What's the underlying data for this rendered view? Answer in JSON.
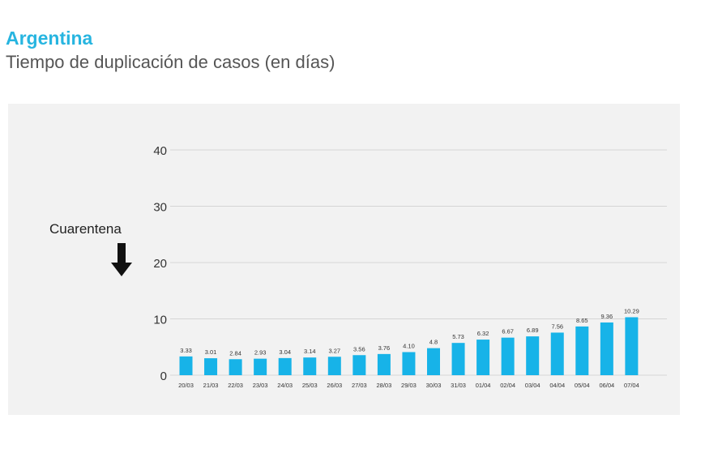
{
  "header": {
    "title": "Argentina",
    "subtitle": "Tiempo de duplicación de casos (en días)"
  },
  "colors": {
    "title": "#27b5e0",
    "bar": "#17b3e8",
    "panel_bg": "#f2f2f2",
    "grid": "#d5d5d5"
  },
  "chart_data": {
    "type": "bar",
    "title": "Tiempo de duplicación de casos (en días)",
    "xlabel": "",
    "ylabel": "",
    "ylim": [
      0,
      40
    ],
    "yticks": [
      0,
      10,
      20,
      30,
      40
    ],
    "grid": true,
    "categories": [
      "20/03",
      "21/03",
      "22/03",
      "23/03",
      "24/03",
      "25/03",
      "26/03",
      "27/03",
      "28/03",
      "29/03",
      "30/03",
      "31/03",
      "01/04",
      "02/04",
      "03/04",
      "04/04",
      "05/04",
      "06/04",
      "07/04"
    ],
    "values": [
      3.33,
      3.01,
      2.84,
      2.93,
      3.04,
      3.14,
      3.27,
      3.56,
      3.76,
      4.1,
      4.8,
      5.73,
      6.32,
      6.67,
      6.89,
      7.56,
      8.65,
      9.36,
      10.29
    ],
    "value_labels": [
      "3.33",
      "3.01",
      "2.84",
      "2.93",
      "3.04",
      "3.14",
      "3.27",
      "3.56",
      "3.76",
      "4.10",
      "4.8",
      "5.73",
      "6.32",
      "6.67",
      "6.89",
      "7.56",
      "8.65",
      "9.36",
      "10.29"
    ],
    "annotation": {
      "label": "Cuarentena",
      "icon": "down-arrow-icon"
    }
  }
}
